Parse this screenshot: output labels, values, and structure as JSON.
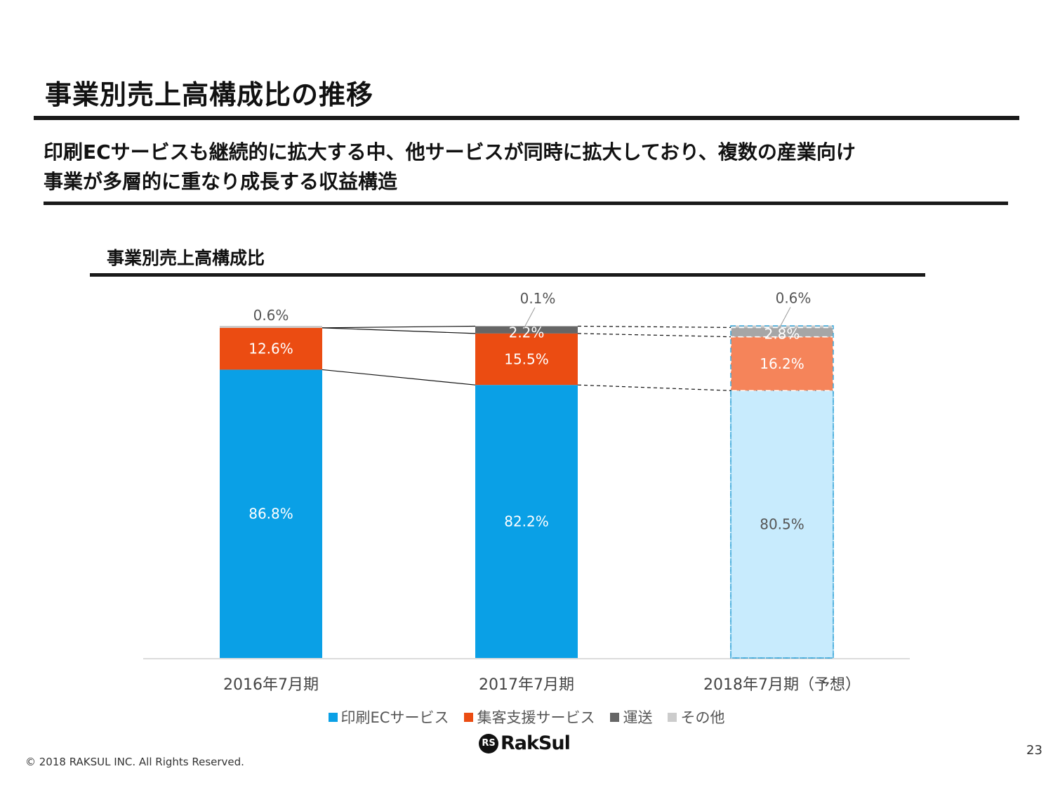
{
  "page": {
    "title": "事業別売上高構成比の推移",
    "subtitle_line1": "印刷ECサービスも継続的に拡大する中、他サービスが同時に拡大しており、複数の産業向け",
    "subtitle_line2": "事業が多層的に重なり成長する収益構造",
    "chart_heading": "事業別売上高構成比",
    "logo_text": "RakSul",
    "copyright": "© 2018 RAKSUL INC. All Rights Reserved.",
    "page_number": "23"
  },
  "chart_data": {
    "type": "bar",
    "stacked": true,
    "title": "事業別売上高構成比",
    "categories": [
      "2016年7月期",
      "2017年7月期",
      "2018年7月期（予想）"
    ],
    "ylim": [
      0,
      100
    ],
    "grid": false,
    "legend_position": "bottom",
    "projected_category_index": 2,
    "series": [
      {
        "name": "印刷ECサービス",
        "values": [
          86.8,
          82.2,
          80.5
        ],
        "labels": [
          "86.8%",
          "82.2%",
          "80.5%"
        ],
        "color": "#0aa0e6",
        "projected_color": "#c8ebfd"
      },
      {
        "name": "集客支援サービス",
        "values": [
          12.6,
          15.5,
          16.2
        ],
        "labels": [
          "12.6%",
          "15.5%",
          "16.2%"
        ],
        "color": "#eb4c12",
        "projected_color": "#f5845a"
      },
      {
        "name": "運送",
        "values": [
          0,
          2.2,
          2.8
        ],
        "labels": [
          "",
          "2.2%",
          "2.8%"
        ],
        "color": "#666666",
        "projected_color": "#a6a6a6"
      },
      {
        "name": "その他",
        "values": [
          0.6,
          0.1,
          0.6
        ],
        "labels": [
          "0.6%",
          "0.1%",
          "0.6%"
        ],
        "color": "#cccccc",
        "projected_color": "#cccccc"
      }
    ]
  }
}
